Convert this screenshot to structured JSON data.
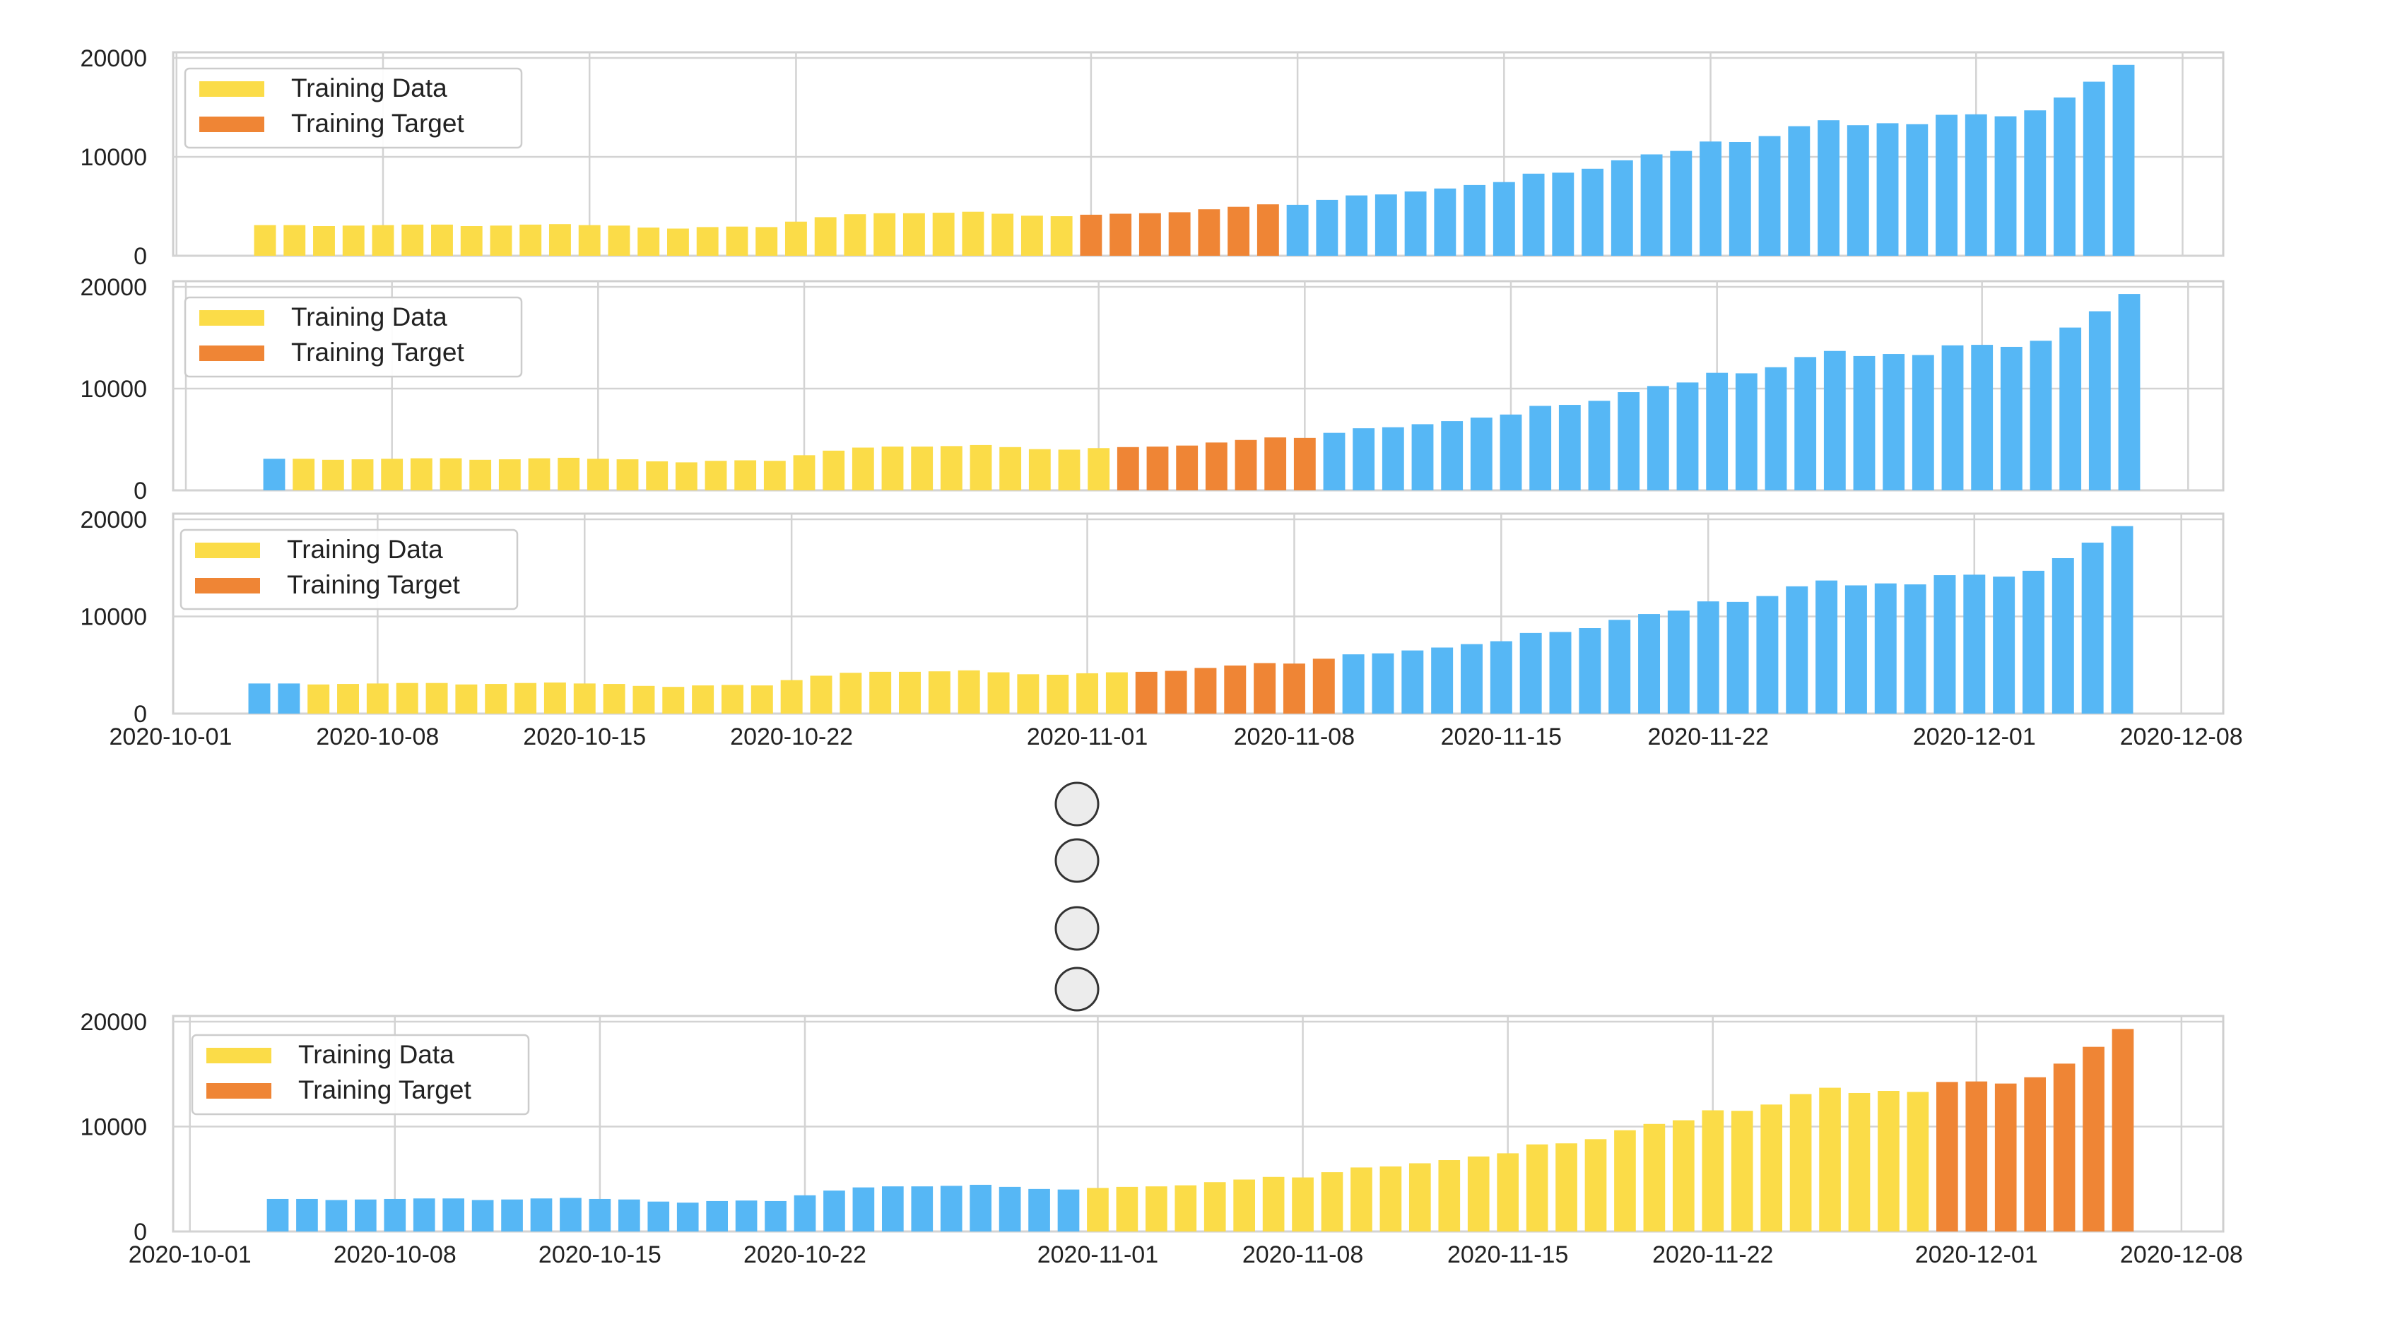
{
  "colors": {
    "training_data": "#fbdc48",
    "training_target": "#ef8535",
    "other": "#56b7f5",
    "grid": "#d3d3d3",
    "frame": "#cfcfcf",
    "ellipsis_fill": "#ececec",
    "ellipsis_stroke": "#333333"
  },
  "legend": {
    "training_data": "Training Data",
    "training_target": "Training Target"
  },
  "chart_data": [
    {
      "type": "bar",
      "series_colors_by_role": [
        "other",
        "training_data",
        "training_target"
      ],
      "start_date": "2020-10-04",
      "end_date": "2020-12-06",
      "values": [
        3100,
        3100,
        3000,
        3050,
        3100,
        3150,
        3150,
        3000,
        3050,
        3150,
        3200,
        3100,
        3050,
        2850,
        2750,
        2900,
        2950,
        2900,
        3450,
        3900,
        4200,
        4300,
        4300,
        4350,
        4450,
        4250,
        4050,
        4000,
        4150,
        4250,
        4300,
        4400,
        4700,
        4950,
        5200,
        5150,
        5650,
        6100,
        6200,
        6500,
        6800,
        7150,
        7450,
        8300,
        8400,
        8800,
        9650,
        10250,
        10600,
        11550,
        11500,
        12100,
        13100,
        13700,
        13200,
        13400,
        13300,
        14250,
        14300,
        14100,
        14700,
        16000,
        17600,
        19300
      ],
      "roles": [
        "training_data",
        "training_data",
        "training_data",
        "training_data",
        "training_data",
        "training_data",
        "training_data",
        "training_data",
        "training_data",
        "training_data",
        "training_data",
        "training_data",
        "training_data",
        "training_data",
        "training_data",
        "training_data",
        "training_data",
        "training_data",
        "training_data",
        "training_data",
        "training_data",
        "training_data",
        "training_data",
        "training_data",
        "training_data",
        "training_data",
        "training_data",
        "training_data",
        "training_target",
        "training_target",
        "training_target",
        "training_target",
        "training_target",
        "training_target",
        "training_target",
        "other",
        "other",
        "other",
        "other",
        "other",
        "other",
        "other",
        "other",
        "other",
        "other",
        "other",
        "other",
        "other",
        "other",
        "other",
        "other",
        "other",
        "other",
        "other",
        "other",
        "other",
        "other",
        "other",
        "other",
        "other",
        "other",
        "other",
        "other",
        "other"
      ],
      "yticks": [
        "0",
        "10000",
        "20000"
      ],
      "ylim": [
        0,
        20000
      ],
      "xlim": [
        "2020-10-01",
        "2020-12-08"
      ],
      "xticks": [],
      "legend_position": "upper-left"
    },
    {
      "type": "bar",
      "start_date": "2020-10-04",
      "end_date": "2020-12-06",
      "values": [
        3100,
        3100,
        3000,
        3050,
        3100,
        3150,
        3150,
        3000,
        3050,
        3150,
        3200,
        3100,
        3050,
        2850,
        2750,
        2900,
        2950,
        2900,
        3450,
        3900,
        4200,
        4300,
        4300,
        4350,
        4450,
        4250,
        4050,
        4000,
        4150,
        4250,
        4300,
        4400,
        4700,
        4950,
        5200,
        5150,
        5650,
        6100,
        6200,
        6500,
        6800,
        7150,
        7450,
        8300,
        8400,
        8800,
        9650,
        10250,
        10600,
        11550,
        11500,
        12100,
        13100,
        13700,
        13200,
        13400,
        13300,
        14250,
        14300,
        14100,
        14700,
        16000,
        17600,
        19300
      ],
      "roles": [
        "other",
        "training_data",
        "training_data",
        "training_data",
        "training_data",
        "training_data",
        "training_data",
        "training_data",
        "training_data",
        "training_data",
        "training_data",
        "training_data",
        "training_data",
        "training_data",
        "training_data",
        "training_data",
        "training_data",
        "training_data",
        "training_data",
        "training_data",
        "training_data",
        "training_data",
        "training_data",
        "training_data",
        "training_data",
        "training_data",
        "training_data",
        "training_data",
        "training_data",
        "training_target",
        "training_target",
        "training_target",
        "training_target",
        "training_target",
        "training_target",
        "training_target",
        "other",
        "other",
        "other",
        "other",
        "other",
        "other",
        "other",
        "other",
        "other",
        "other",
        "other",
        "other",
        "other",
        "other",
        "other",
        "other",
        "other",
        "other",
        "other",
        "other",
        "other",
        "other",
        "other",
        "other",
        "other",
        "other",
        "other",
        "other"
      ],
      "yticks": [
        "0",
        "10000",
        "20000"
      ],
      "ylim": [
        0,
        20000
      ],
      "xlim": [
        "2020-10-01",
        "2020-12-08"
      ],
      "xticks": [],
      "legend_position": "upper-left"
    },
    {
      "type": "bar",
      "start_date": "2020-10-04",
      "end_date": "2020-12-06",
      "values": [
        3100,
        3100,
        3000,
        3050,
        3100,
        3150,
        3150,
        3000,
        3050,
        3150,
        3200,
        3100,
        3050,
        2850,
        2750,
        2900,
        2950,
        2900,
        3450,
        3900,
        4200,
        4300,
        4300,
        4350,
        4450,
        4250,
        4050,
        4000,
        4150,
        4250,
        4300,
        4400,
        4700,
        4950,
        5200,
        5150,
        5650,
        6100,
        6200,
        6500,
        6800,
        7150,
        7450,
        8300,
        8400,
        8800,
        9650,
        10250,
        10600,
        11550,
        11500,
        12100,
        13100,
        13700,
        13200,
        13400,
        13300,
        14250,
        14300,
        14100,
        14700,
        16000,
        17600,
        19300
      ],
      "roles": [
        "other",
        "other",
        "training_data",
        "training_data",
        "training_data",
        "training_data",
        "training_data",
        "training_data",
        "training_data",
        "training_data",
        "training_data",
        "training_data",
        "training_data",
        "training_data",
        "training_data",
        "training_data",
        "training_data",
        "training_data",
        "training_data",
        "training_data",
        "training_data",
        "training_data",
        "training_data",
        "training_data",
        "training_data",
        "training_data",
        "training_data",
        "training_data",
        "training_data",
        "training_data",
        "training_target",
        "training_target",
        "training_target",
        "training_target",
        "training_target",
        "training_target",
        "training_target",
        "other",
        "other",
        "other",
        "other",
        "other",
        "other",
        "other",
        "other",
        "other",
        "other",
        "other",
        "other",
        "other",
        "other",
        "other",
        "other",
        "other",
        "other",
        "other",
        "other",
        "other",
        "other",
        "other",
        "other",
        "other",
        "other",
        "other"
      ],
      "yticks": [
        "0",
        "10000",
        "20000"
      ],
      "ylim": [
        0,
        20000
      ],
      "xlim": [
        "2020-10-01",
        "2020-12-08"
      ],
      "xticks": [
        "2020-10-01",
        "2020-10-08",
        "2020-10-15",
        "2020-10-22",
        "2020-11-01",
        "2020-11-08",
        "2020-11-15",
        "2020-11-22",
        "2020-12-01",
        "2020-12-08"
      ],
      "legend_position": "upper-left"
    },
    {
      "type": "bar",
      "start_date": "2020-10-04",
      "end_date": "2020-12-06",
      "values": [
        3100,
        3100,
        3000,
        3050,
        3100,
        3150,
        3150,
        3000,
        3050,
        3150,
        3200,
        3100,
        3050,
        2850,
        2750,
        2900,
        2950,
        2900,
        3450,
        3900,
        4200,
        4300,
        4300,
        4350,
        4450,
        4250,
        4050,
        4000,
        4150,
        4250,
        4300,
        4400,
        4700,
        4950,
        5200,
        5150,
        5650,
        6100,
        6200,
        6500,
        6800,
        7150,
        7450,
        8300,
        8400,
        8800,
        9650,
        10250,
        10600,
        11550,
        11500,
        12100,
        13100,
        13700,
        13200,
        13400,
        13300,
        14250,
        14300,
        14100,
        14700,
        16000,
        17600,
        19300
      ],
      "roles": [
        "other",
        "other",
        "other",
        "other",
        "other",
        "other",
        "other",
        "other",
        "other",
        "other",
        "other",
        "other",
        "other",
        "other",
        "other",
        "other",
        "other",
        "other",
        "other",
        "other",
        "other",
        "other",
        "other",
        "other",
        "other",
        "other",
        "other",
        "other",
        "training_data",
        "training_data",
        "training_data",
        "training_data",
        "training_data",
        "training_data",
        "training_data",
        "training_data",
        "training_data",
        "training_data",
        "training_data",
        "training_data",
        "training_data",
        "training_data",
        "training_data",
        "training_data",
        "training_data",
        "training_data",
        "training_data",
        "training_data",
        "training_data",
        "training_data",
        "training_data",
        "training_data",
        "training_data",
        "training_data",
        "training_data",
        "training_data",
        "training_data",
        "training_target",
        "training_target",
        "training_target",
        "training_target",
        "training_target",
        "training_target",
        "training_target"
      ],
      "yticks": [
        "0",
        "10000",
        "20000"
      ],
      "ylim": [
        0,
        20000
      ],
      "xlim": [
        "2020-10-01",
        "2020-12-08"
      ],
      "xticks": [
        "2020-10-01",
        "2020-10-08",
        "2020-10-15",
        "2020-10-22",
        "2020-11-01",
        "2020-11-08",
        "2020-11-15",
        "2020-11-22",
        "2020-12-01",
        "2020-12-08"
      ],
      "legend_position": "upper-left"
    }
  ]
}
